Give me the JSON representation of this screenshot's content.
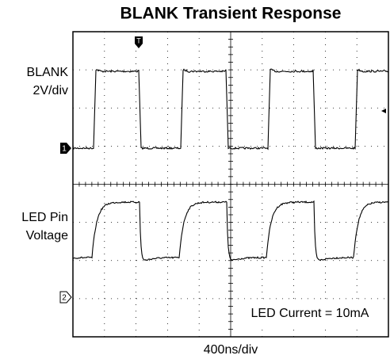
{
  "title": "BLANK Transient Response",
  "channels": [
    {
      "marker": "1",
      "label_lines": [
        "BLANK",
        "2V/div"
      ]
    },
    {
      "marker": "2",
      "label_lines": [
        "LED Pin",
        "Voltage"
      ]
    }
  ],
  "trigger_marker": "T",
  "timebase": "400ns/div",
  "annotation": "LED Current = 10mA"
}
